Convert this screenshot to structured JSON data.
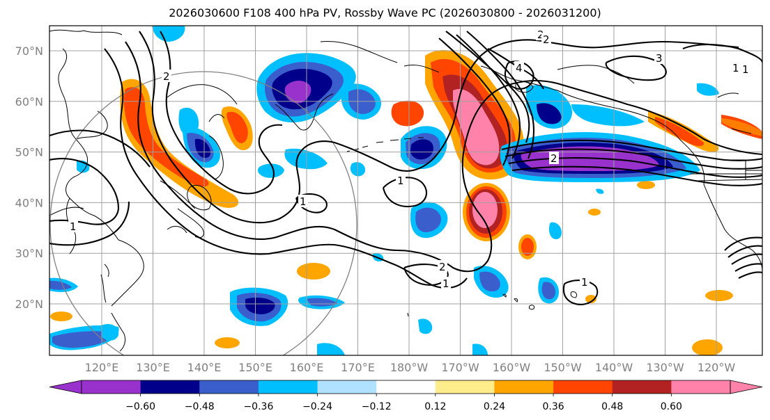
{
  "title": "2026030600 F108 400 hPa PV, Rossby Wave PC (2026030800 - 2026031200)",
  "lat_labels": [
    "70°N",
    "60°N",
    "50°N",
    "40°N",
    "30°N",
    "20°N"
  ],
  "lon_labels": [
    "120°E",
    "130°E",
    "140°E",
    "150°E",
    "160°E",
    "170°E",
    "180°W",
    "170°W",
    "160°W",
    "150°W",
    "140°W",
    "130°W",
    "120°W"
  ],
  "colorbar": {
    "colors": [
      "#9932cc",
      "#00008b",
      "#3a5fcd",
      "#00bfff",
      "#b0e2ff",
      "#ffffff",
      "#ffec8b",
      "#ffa500",
      "#ff4500",
      "#b22222",
      "#ff82ab"
    ],
    "extend_min_color": "#9932cc",
    "extend_max_color": "#ff82ab",
    "ticks": [
      "−0.60",
      "−0.48",
      "−0.36",
      "−0.24",
      "−0.12",
      "0.12",
      "0.24",
      "0.36",
      "0.48",
      "0.60"
    ]
  },
  "contour_labels": [
    "2",
    "2",
    "2",
    "4",
    "3",
    "1",
    "1",
    "2",
    "1",
    "1",
    "1",
    "2",
    "1",
    "1"
  ],
  "colors": {
    "grid": "#a0a0a0",
    "axis_label": "#808080",
    "circle": "#808080",
    "contour": "#000000"
  }
}
